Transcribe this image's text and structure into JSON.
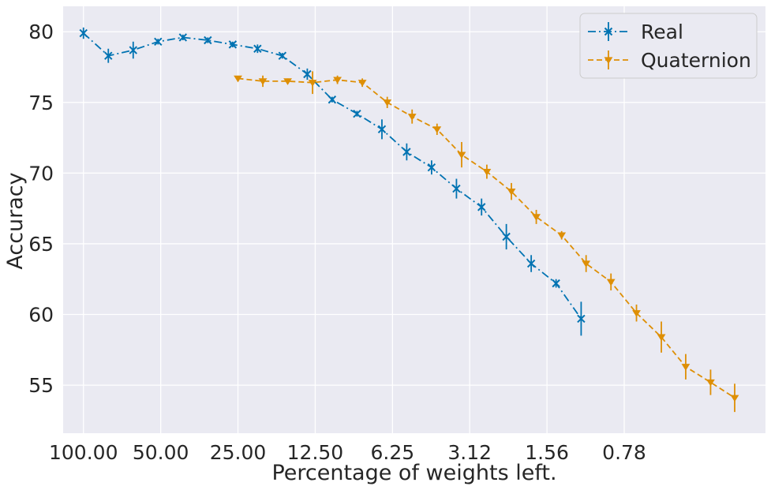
{
  "chart_data": {
    "type": "line",
    "title": "",
    "xlabel": "Percentage of weights left.",
    "ylabel": "Accuracy",
    "x_scale": "log2",
    "x_tick_values": [
      100.0,
      50.0,
      25.0,
      12.5,
      6.25,
      3.125,
      1.5625,
      0.78125
    ],
    "x_tick_labels": [
      "100.00",
      "50.00",
      "25.00",
      "12.50",
      "6.25",
      "3.12",
      "1.56",
      "0.78"
    ],
    "xlim": [
      120,
      0.22
    ],
    "ylim": [
      51.6,
      81.8
    ],
    "y_ticks": [
      55,
      60,
      65,
      70,
      75,
      80
    ],
    "y_tick_labels": [
      "55",
      "60",
      "65",
      "70",
      "75",
      "80"
    ],
    "grid": true,
    "legend_position": "top-right",
    "colors": {
      "background": "#eaeaf2",
      "grid": "#ffffff",
      "real": "#0173b2",
      "quaternion": "#de8f05"
    },
    "series": [
      {
        "name": "Real",
        "marker": "x",
        "linestyle": "dash-dot",
        "color": "#0173b2",
        "x": [
          100.0,
          80.0,
          64.0,
          51.2,
          40.96,
          32.77,
          26.21,
          20.97,
          16.78,
          13.42,
          10.74,
          8.59,
          6.87,
          5.5,
          4.4,
          3.52,
          2.81,
          2.25,
          1.8,
          1.44,
          1.15
        ],
        "values": [
          79.9,
          78.3,
          78.7,
          79.3,
          79.6,
          79.4,
          79.1,
          78.8,
          78.3,
          77.0,
          75.2,
          74.2,
          73.1,
          71.5,
          70.4,
          68.9,
          67.6,
          65.5,
          63.6,
          62.2,
          59.7
        ],
        "errors": [
          0.4,
          0.5,
          0.6,
          0.2,
          0.2,
          0.2,
          0.2,
          0.3,
          0.2,
          0.4,
          0.2,
          0.2,
          0.7,
          0.6,
          0.5,
          0.7,
          0.6,
          0.9,
          0.6,
          0.3,
          1.2
        ]
      },
      {
        "name": "Quaternion",
        "marker": "triangle-down",
        "linestyle": "dashed",
        "color": "#de8f05",
        "x": [
          25.0,
          20.0,
          16.0,
          12.8,
          10.24,
          8.19,
          6.55,
          5.24,
          4.19,
          3.36,
          2.68,
          2.15,
          1.72,
          1.37,
          1.1,
          0.88,
          0.7,
          0.56,
          0.45,
          0.36,
          0.29
        ],
        "values": [
          76.7,
          76.5,
          76.5,
          76.4,
          76.6,
          76.4,
          75.0,
          74.0,
          73.1,
          71.3,
          70.1,
          68.7,
          66.9,
          65.6,
          63.6,
          62.3,
          60.1,
          58.4,
          56.3,
          55.2,
          54.1
        ],
        "errors": [
          0.1,
          0.4,
          0.2,
          0.8,
          0.3,
          0.3,
          0.4,
          0.5,
          0.4,
          0.9,
          0.5,
          0.6,
          0.5,
          0.3,
          0.6,
          0.6,
          0.6,
          1.1,
          0.9,
          0.9,
          1.0
        ]
      }
    ]
  }
}
